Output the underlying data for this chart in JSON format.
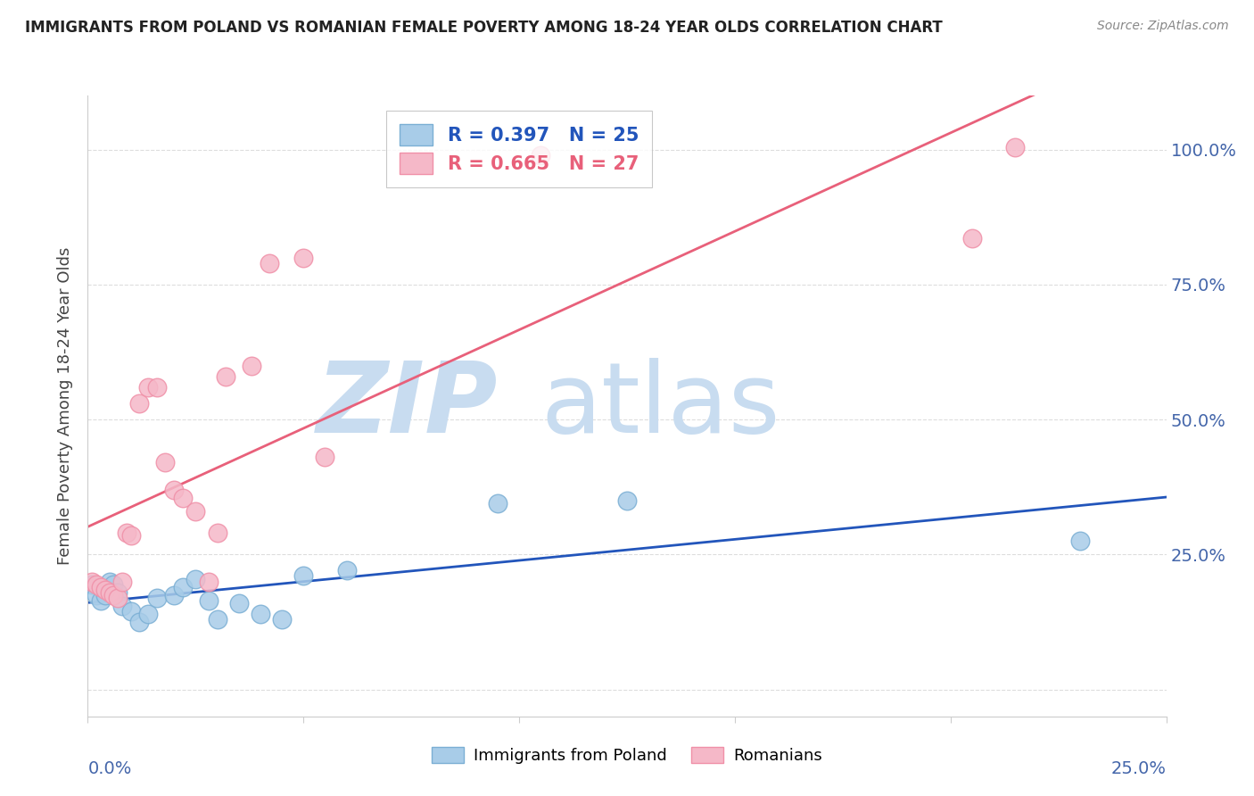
{
  "title": "IMMIGRANTS FROM POLAND VS ROMANIAN FEMALE POVERTY AMONG 18-24 YEAR OLDS CORRELATION CHART",
  "source": "Source: ZipAtlas.com",
  "ylabel": "Female Poverty Among 18-24 Year Olds",
  "poland_R": 0.397,
  "poland_N": 25,
  "romanian_R": 0.665,
  "romanian_N": 27,
  "poland_color": "#A8CCE8",
  "romanian_color": "#F5B8C8",
  "poland_edge_color": "#7BAFD4",
  "romanian_edge_color": "#F090A8",
  "poland_line_color": "#2255BB",
  "romanian_line_color": "#E8607A",
  "watermark_zip": "ZIP",
  "watermark_atlas": "atlas",
  "watermark_color_zip": "#C8DCF0",
  "watermark_color_atlas": "#C8DCF0",
  "poland_x": [
    0.001,
    0.002,
    0.003,
    0.004,
    0.005,
    0.006,
    0.007,
    0.008,
    0.01,
    0.012,
    0.014,
    0.016,
    0.02,
    0.022,
    0.025,
    0.028,
    0.03,
    0.035,
    0.04,
    0.045,
    0.05,
    0.06,
    0.095,
    0.125,
    0.23
  ],
  "poland_y": [
    0.195,
    0.175,
    0.165,
    0.175,
    0.2,
    0.195,
    0.18,
    0.155,
    0.145,
    0.125,
    0.14,
    0.17,
    0.175,
    0.19,
    0.205,
    0.165,
    0.13,
    0.16,
    0.14,
    0.13,
    0.21,
    0.22,
    0.345,
    0.35,
    0.275
  ],
  "romanian_x": [
    0.001,
    0.002,
    0.003,
    0.004,
    0.005,
    0.006,
    0.007,
    0.008,
    0.009,
    0.01,
    0.012,
    0.014,
    0.016,
    0.018,
    0.02,
    0.022,
    0.025,
    0.028,
    0.03,
    0.032,
    0.038,
    0.042,
    0.05,
    0.055,
    0.105,
    0.205,
    0.215
  ],
  "romanian_y": [
    0.2,
    0.195,
    0.19,
    0.185,
    0.18,
    0.175,
    0.17,
    0.2,
    0.29,
    0.285,
    0.53,
    0.56,
    0.56,
    0.42,
    0.37,
    0.355,
    0.33,
    0.2,
    0.29,
    0.58,
    0.6,
    0.79,
    0.8,
    0.43,
    0.99,
    0.835,
    1.005
  ],
  "xlim": [
    0.0,
    0.25
  ],
  "ylim": [
    -0.05,
    1.1
  ],
  "x_ticks": [
    0.0,
    0.05,
    0.1,
    0.15,
    0.2,
    0.25
  ],
  "y_ticks": [
    0.0,
    0.25,
    0.5,
    0.75,
    1.0
  ],
  "y_tick_labels_right": [
    "",
    "25.0%",
    "50.0%",
    "75.0%",
    "100.0%"
  ],
  "label_color": "#4466AA",
  "grid_color": "#DDDDDD",
  "spine_color": "#CCCCCC"
}
